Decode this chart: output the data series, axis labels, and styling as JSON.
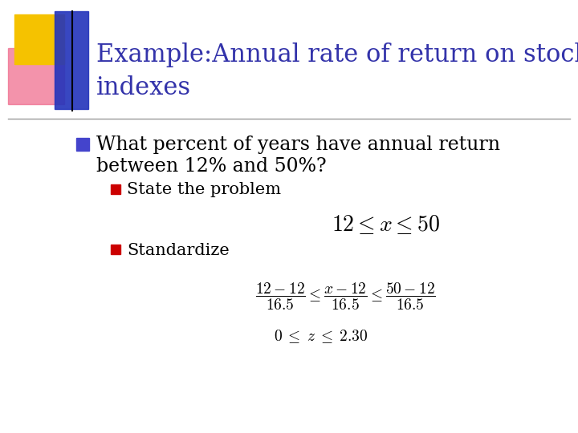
{
  "title_line1": "Example:Annual rate of return on stock",
  "title_line2": "indexes",
  "title_color": "#3333aa",
  "title_fontsize": 22,
  "bullet1_text_line1": "What percent of years have annual return",
  "bullet1_text_line2": "between 12% and 50%?",
  "sub_bullet1_text": "State the problem",
  "sub_bullet2_text": "Standardize",
  "text_color": "#000000",
  "bullet1_fontsize": 17,
  "sub_bullet_fontsize": 15,
  "sub_bullet_marker_color": "#cc0000",
  "main_bullet_marker_color": "#4444cc",
  "bg_color": "#ffffff",
  "formula1": "$12 \\leq x \\leq 50$",
  "formula2_line1": "$\\dfrac{12-12}{16.5} \\leq \\dfrac{x-12}{16.5} \\leq \\dfrac{50-12}{16.5}$",
  "formula2_line2": "$0 \\;\\leq\\; z \\;\\leq\\; 2.30$",
  "formula1_fontsize": 20,
  "formula2_fontsize": 14,
  "deco_yellow": "#f5c200",
  "deco_red": "#ee6688",
  "deco_blue": "#2233bb",
  "line_color": "#999999"
}
